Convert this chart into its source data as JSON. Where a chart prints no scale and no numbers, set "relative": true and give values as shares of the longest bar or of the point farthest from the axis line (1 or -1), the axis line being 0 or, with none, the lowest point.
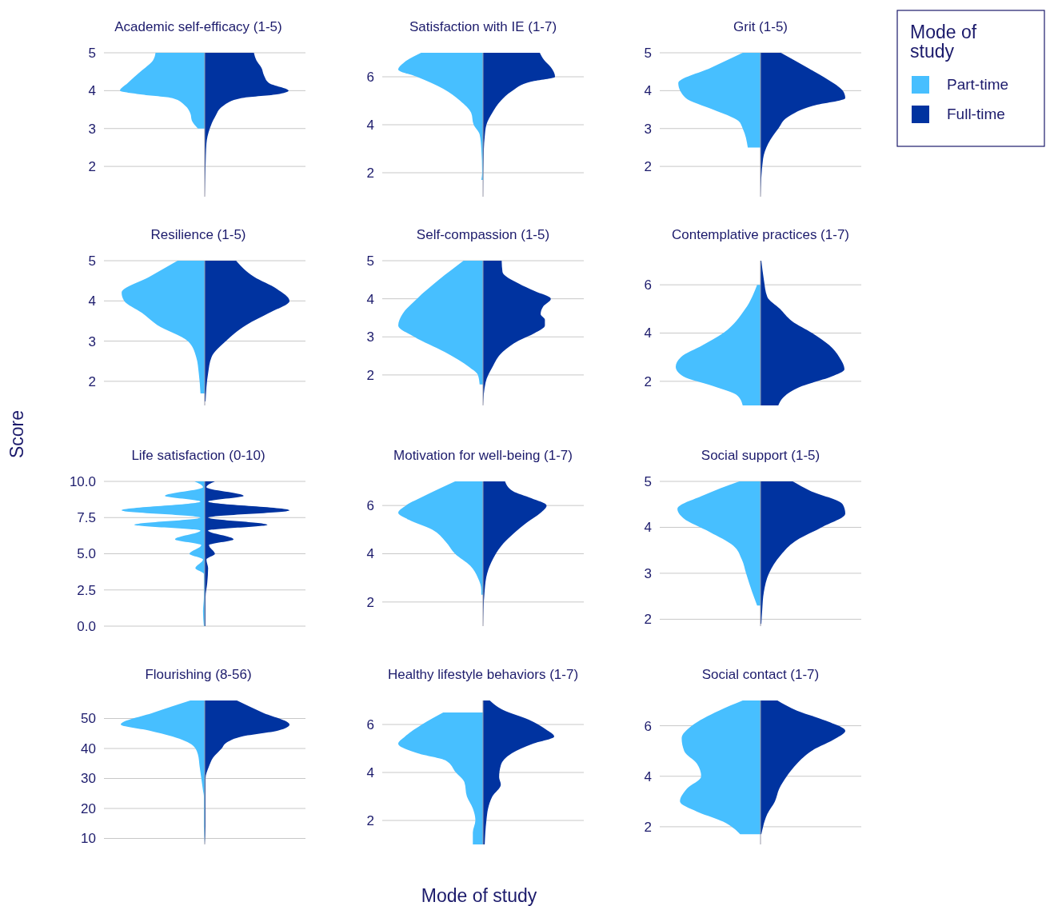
{
  "chart_data": [
    {
      "type": "area",
      "orientation": "horizontal",
      "relative": true,
      "title": "Academic self-efficacy (1-5)",
      "ylim": [
        1.2,
        5
      ],
      "yticks": [
        2,
        3,
        4,
        5
      ],
      "grid": "y",
      "series": [
        {
          "color": "#47bfff",
          "x": [
            5,
            4.8,
            4.5,
            4.2,
            4.0,
            3.9,
            3.8,
            3.6,
            3.4,
            3.2,
            3.0
          ],
          "values": [
            -0.58,
            -0.61,
            -0.76,
            -0.91,
            -1.0,
            -0.76,
            -0.38,
            -0.23,
            -0.17,
            -0.15,
            -0.08
          ]
        },
        {
          "color": "#0033a0",
          "x": [
            5,
            4.8,
            4.6,
            4.4,
            4.2,
            4.0,
            3.9,
            3.8,
            3.6,
            3.3,
            3.0,
            2.6,
            2.0,
            1.2
          ],
          "values": [
            0.58,
            0.61,
            0.67,
            0.7,
            0.76,
            0.99,
            0.85,
            0.43,
            0.22,
            0.12,
            0.06,
            0.02,
            0.01,
            0
          ]
        }
      ]
    },
    {
      "type": "area",
      "orientation": "horizontal",
      "relative": true,
      "title": "Satisfaction with IE (1-7)",
      "ylim": [
        1,
        7
      ],
      "yticks": [
        2,
        4,
        6
      ],
      "grid": "y",
      "series": [
        {
          "color": "#47bfff",
          "x": [
            7,
            6.6,
            6.3,
            6.0,
            5.5,
            5.0,
            4.5,
            4.0,
            3.6,
            3.0,
            2.0,
            1.7
          ],
          "values": [
            -0.73,
            -0.93,
            -1.0,
            -0.78,
            -0.47,
            -0.27,
            -0.14,
            -0.11,
            -0.04,
            -0.02,
            -0.01,
            -0.02
          ]
        },
        {
          "color": "#0033a0",
          "x": [
            7,
            6.7,
            6.4,
            6.0,
            5.8,
            5.4,
            5.0,
            4.5,
            4.0,
            3.5,
            3.0,
            1.0
          ],
          "values": [
            0.67,
            0.72,
            0.8,
            0.85,
            0.57,
            0.34,
            0.21,
            0.11,
            0.04,
            0.02,
            0.01,
            0
          ]
        }
      ]
    },
    {
      "type": "area",
      "orientation": "horizontal",
      "relative": true,
      "title": "Grit (1-5)",
      "ylim": [
        1.2,
        5
      ],
      "yticks": [
        2,
        3,
        4,
        5
      ],
      "grid": "y",
      "legend": "right",
      "legend_title": "Mode of study",
      "series": [
        {
          "name": "Part-time",
          "color": "#47bfff",
          "x": [
            5,
            4.6,
            4.2,
            3.8,
            3.5,
            3.2,
            3.0,
            2.5
          ],
          "values": [
            -0.21,
            -0.59,
            -0.97,
            -0.88,
            -0.56,
            -0.26,
            -0.21,
            -0.15
          ]
        },
        {
          "name": "Full-time",
          "color": "#0033a0",
          "x": [
            5,
            4.6,
            4.3,
            4.0,
            3.8,
            3.6,
            3.3,
            3.0,
            2.6,
            2.2,
            1.2
          ],
          "values": [
            0.24,
            0.56,
            0.79,
            0.97,
            1.0,
            0.62,
            0.32,
            0.21,
            0.09,
            0.03,
            0
          ]
        }
      ]
    },
    {
      "type": "area",
      "orientation": "horizontal",
      "relative": true,
      "title": "Resilience (1-5)",
      "ylim": [
        1.4,
        5
      ],
      "yticks": [
        2,
        3,
        4,
        5
      ],
      "grid": "y",
      "series": [
        {
          "color": "#47bfff",
          "x": [
            5,
            4.6,
            4.2,
            4.0,
            3.7,
            3.4,
            3.0,
            2.6,
            2.2,
            1.7
          ],
          "values": [
            -0.32,
            -0.65,
            -0.98,
            -0.95,
            -0.74,
            -0.56,
            -0.2,
            -0.1,
            -0.07,
            -0.05
          ]
        },
        {
          "color": "#0033a0",
          "x": [
            5,
            4.6,
            4.3,
            4.0,
            3.7,
            3.4,
            3.0,
            2.6,
            2.2,
            1.5
          ],
          "values": [
            0.37,
            0.58,
            0.85,
            1.0,
            0.76,
            0.49,
            0.25,
            0.08,
            0.04,
            0.01
          ]
        }
      ]
    },
    {
      "type": "area",
      "orientation": "horizontal",
      "relative": true,
      "title": "Self-compassion (1-5)",
      "ylim": [
        1.2,
        5
      ],
      "yticks": [
        2,
        3,
        4,
        5
      ],
      "grid": "y",
      "series": [
        {
          "color": "#47bfff",
          "x": [
            5,
            4.5,
            4.0,
            3.6,
            3.3,
            3.0,
            2.6,
            2.2,
            2.0,
            1.75
          ],
          "values": [
            -0.23,
            -0.52,
            -0.78,
            -0.95,
            -1.0,
            -0.81,
            -0.45,
            -0.16,
            -0.06,
            -0.04
          ]
        },
        {
          "color": "#0033a0",
          "x": [
            5,
            4.7,
            4.4,
            4.2,
            4.0,
            3.8,
            3.6,
            3.45,
            3.3,
            3.1,
            2.9,
            2.6,
            2.2,
            1.8,
            1.2
          ],
          "values": [
            0.22,
            0.23,
            0.42,
            0.61,
            0.8,
            0.71,
            0.68,
            0.73,
            0.73,
            0.61,
            0.42,
            0.23,
            0.11,
            0.03,
            0
          ]
        }
      ]
    },
    {
      "type": "area",
      "orientation": "horizontal",
      "relative": true,
      "title": "Contemplative practices (1-7)",
      "ylim": [
        1,
        7
      ],
      "yticks": [
        2,
        4,
        6
      ],
      "grid": "y",
      "series": [
        {
          "color": "#47bfff",
          "x": [
            6,
            5,
            4,
            3.5,
            3,
            2.6,
            2.2,
            1.8,
            1.4,
            1
          ],
          "values": [
            -0.04,
            -0.18,
            -0.44,
            -0.68,
            -0.94,
            -1.0,
            -0.91,
            -0.56,
            -0.27,
            -0.21
          ]
        },
        {
          "color": "#0033a0",
          "x": [
            7,
            6.2,
            5.5,
            5,
            4.5,
            4,
            3.5,
            3,
            2.5,
            2.2,
            1.8,
            1.4,
            1
          ],
          "values": [
            0.01,
            0.04,
            0.08,
            0.23,
            0.37,
            0.61,
            0.81,
            0.93,
            0.99,
            0.84,
            0.49,
            0.29,
            0.21
          ]
        }
      ]
    },
    {
      "type": "area",
      "orientation": "horizontal",
      "relative": true,
      "title": "Life satisfaction (0-10)",
      "ylabel": "Score",
      "ylim": [
        0,
        10
      ],
      "yticks": [
        {
          "value": 0,
          "label": "0.0"
        },
        {
          "value": 2.5,
          "label": "2.5"
        },
        {
          "value": 5,
          "label": "5.0"
        },
        {
          "value": 7.5,
          "label": "7.5"
        },
        {
          "value": 10,
          "label": "10.0"
        }
      ],
      "grid": "y",
      "series": [
        {
          "color": "#47bfff",
          "x": [
            10,
            9.6,
            9,
            8.6,
            8,
            7.5,
            7,
            6.6,
            6,
            5.6,
            5,
            4.6,
            4,
            3.6,
            3,
            2,
            1,
            0
          ],
          "values": [
            -0.12,
            -0.02,
            -0.47,
            -0.05,
            -0.98,
            -0.05,
            -0.83,
            -0.05,
            -0.35,
            -0.04,
            -0.18,
            -0.02,
            -0.11,
            -0.01,
            -0.01,
            -0.01,
            -0.02,
            -0.01
          ]
        },
        {
          "color": "#0033a0",
          "x": [
            10,
            9.6,
            9,
            8.6,
            8,
            7.5,
            7,
            6.6,
            6,
            5.6,
            5,
            4.6,
            4,
            3,
            2,
            0
          ],
          "values": [
            0.12,
            0.02,
            0.46,
            0.04,
            1.0,
            0.04,
            0.74,
            0.04,
            0.34,
            0.05,
            0.12,
            0.02,
            0.04,
            0.03,
            0.01,
            0.01
          ]
        }
      ]
    },
    {
      "type": "area",
      "orientation": "horizontal",
      "relative": true,
      "title": "Motivation for well-being (1-7)",
      "ylim": [
        1,
        7
      ],
      "yticks": [
        2,
        4,
        6
      ],
      "grid": "y",
      "series": [
        {
          "color": "#47bfff",
          "x": [
            7,
            6.4,
            6,
            5.7,
            5.4,
            5,
            4.5,
            4,
            3.5,
            3,
            2.5,
            2.3
          ],
          "values": [
            -0.33,
            -0.69,
            -0.91,
            -1.0,
            -0.87,
            -0.6,
            -0.44,
            -0.33,
            -0.15,
            -0.06,
            -0.02,
            -0.02
          ]
        },
        {
          "color": "#0033a0",
          "x": [
            7,
            6.6,
            6.3,
            6,
            5.7,
            5.3,
            4.8,
            4.3,
            3.8,
            3.2,
            2.5,
            1
          ],
          "values": [
            0.26,
            0.35,
            0.57,
            0.75,
            0.68,
            0.52,
            0.35,
            0.21,
            0.12,
            0.05,
            0.02,
            0
          ]
        }
      ]
    },
    {
      "type": "area",
      "orientation": "horizontal",
      "relative": true,
      "title": "Social support (1-5)",
      "ylim": [
        1.85,
        5
      ],
      "yticks": [
        2,
        3,
        4,
        5
      ],
      "grid": "y",
      "series": [
        {
          "color": "#47bfff",
          "x": [
            5,
            4.7,
            4.4,
            4.2,
            3.9,
            3.6,
            3.3,
            3,
            2.6,
            2.3
          ],
          "values": [
            -0.25,
            -0.67,
            -0.98,
            -0.91,
            -0.6,
            -0.32,
            -0.22,
            -0.17,
            -0.1,
            -0.04
          ]
        },
        {
          "color": "#0033a0",
          "x": [
            5,
            4.8,
            4.5,
            4.3,
            4,
            3.7,
            3.4,
            3,
            2.6,
            2.2,
            1.9
          ],
          "values": [
            0.38,
            0.58,
            0.97,
            1.0,
            0.72,
            0.41,
            0.24,
            0.1,
            0.04,
            0.02,
            0.01
          ]
        }
      ]
    },
    {
      "type": "area",
      "orientation": "horizontal",
      "relative": true,
      "title": "Flourishing (8-56)",
      "ylim": [
        8,
        56
      ],
      "yticks": [
        10,
        20,
        30,
        40,
        50
      ],
      "grid": "y",
      "series": [
        {
          "color": "#47bfff",
          "x": [
            56,
            52,
            48,
            46,
            44,
            41,
            38,
            34,
            30,
            26,
            24,
            20,
            14,
            8
          ],
          "values": [
            -0.17,
            -0.6,
            -0.99,
            -0.66,
            -0.38,
            -0.14,
            -0.08,
            -0.06,
            -0.04,
            -0.02,
            -0.01,
            -0.01,
            -0.01,
            0
          ]
        },
        {
          "color": "#0033a0",
          "x": [
            56,
            52,
            48,
            46,
            44,
            42,
            40,
            37,
            34,
            30,
            24,
            14,
            8
          ],
          "values": [
            0.38,
            0.68,
            1.0,
            0.87,
            0.44,
            0.26,
            0.2,
            0.1,
            0.05,
            0.01,
            0.01,
            0.01,
            0
          ]
        }
      ]
    },
    {
      "type": "area",
      "orientation": "horizontal",
      "relative": true,
      "title": "Healthy lifestyle behaviors (1-7)",
      "xlabel": "Mode of study",
      "ylim": [
        1,
        7
      ],
      "yticks": [
        2,
        4,
        6
      ],
      "grid": "y",
      "series": [
        {
          "color": "#47bfff",
          "x": [
            6.5,
            6,
            5.5,
            5.2,
            4.8,
            4.5,
            4,
            3.6,
            3,
            2.5,
            2,
            1.5,
            1
          ],
          "values": [
            -0.47,
            -0.72,
            -0.92,
            -1.0,
            -0.77,
            -0.44,
            -0.32,
            -0.22,
            -0.19,
            -0.12,
            -0.09,
            -0.12,
            -0.12
          ]
        },
        {
          "color": "#0033a0",
          "x": [
            7,
            6.6,
            6.2,
            5.8,
            5.5,
            5.2,
            4.8,
            4.3,
            3.8,
            3.5,
            3,
            2.5,
            2,
            1
          ],
          "values": [
            0.08,
            0.24,
            0.54,
            0.74,
            0.84,
            0.59,
            0.34,
            0.21,
            0.19,
            0.21,
            0.11,
            0.06,
            0.04,
            0.02
          ]
        }
      ]
    },
    {
      "type": "area",
      "orientation": "horizontal",
      "relative": true,
      "title": "Social contact (1-7)",
      "ylim": [
        1.3,
        7
      ],
      "yticks": [
        2,
        4,
        6
      ],
      "grid": "y",
      "series": [
        {
          "color": "#47bfff",
          "x": [
            7,
            6.6,
            6,
            5.5,
            5,
            4.5,
            4,
            3.5,
            3,
            2.6,
            2.2,
            1.7
          ],
          "values": [
            -0.21,
            -0.49,
            -0.81,
            -0.93,
            -0.9,
            -0.75,
            -0.7,
            -0.87,
            -0.95,
            -0.75,
            -0.44,
            -0.24
          ]
        },
        {
          "color": "#0033a0",
          "x": [
            7,
            6.6,
            6.2,
            5.8,
            5.5,
            5,
            4.5,
            4,
            3.5,
            3,
            2.5,
            2,
            1.7
          ],
          "values": [
            0.2,
            0.43,
            0.77,
            1.0,
            0.89,
            0.6,
            0.43,
            0.31,
            0.22,
            0.17,
            0.08,
            0.03,
            0.01
          ]
        }
      ]
    }
  ]
}
